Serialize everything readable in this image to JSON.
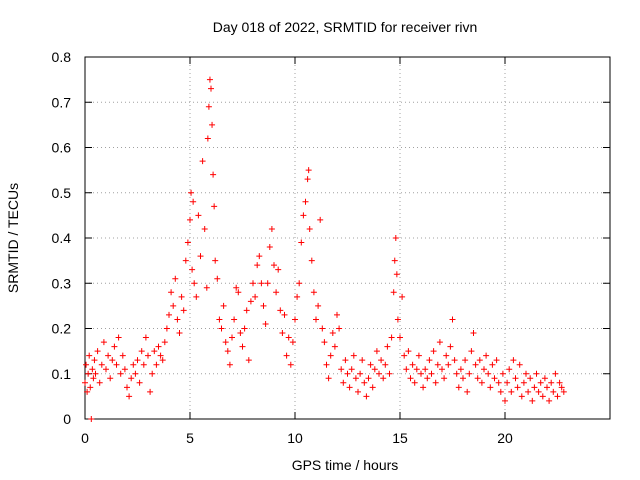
{
  "chart_data": {
    "type": "scatter",
    "title": "Day 018 of 2022, SRMTID for receiver rivn",
    "xlabel": "GPS time / hours",
    "ylabel": "SRMTID / TECUs",
    "xlim": [
      0,
      25
    ],
    "ylim": [
      0,
      0.8
    ],
    "xticks": [
      0,
      5,
      10,
      15,
      20
    ],
    "xtick_labels": [
      "0",
      "5",
      "10",
      "15",
      "20"
    ],
    "yticks": [
      0,
      0.1,
      0.2,
      0.3,
      0.4,
      0.5,
      0.6,
      0.7,
      0.8
    ],
    "ytick_labels": [
      "0",
      "0.1",
      "0.2",
      "0.3",
      "0.4",
      "0.5",
      "0.6",
      "0.7",
      "0.8"
    ],
    "grid": true,
    "marker": "+",
    "marker_color": "#ff0000",
    "series": [
      {
        "name": "rivn",
        "points": [
          [
            0.0,
            0.08
          ],
          [
            0.05,
            0.12
          ],
          [
            0.1,
            0.06
          ],
          [
            0.15,
            0.1
          ],
          [
            0.2,
            0.14
          ],
          [
            0.25,
            0.07
          ],
          [
            0.3,
            0.0
          ],
          [
            0.35,
            0.11
          ],
          [
            0.4,
            0.09
          ],
          [
            0.45,
            0.13
          ],
          [
            0.5,
            0.1
          ],
          [
            0.6,
            0.15
          ],
          [
            0.7,
            0.08
          ],
          [
            0.8,
            0.12
          ],
          [
            0.9,
            0.17
          ],
          [
            1.0,
            0.11
          ],
          [
            1.1,
            0.14
          ],
          [
            1.2,
            0.09
          ],
          [
            1.3,
            0.13
          ],
          [
            1.4,
            0.16
          ],
          [
            1.5,
            0.12
          ],
          [
            1.6,
            0.18
          ],
          [
            1.7,
            0.1
          ],
          [
            1.8,
            0.14
          ],
          [
            1.9,
            0.11
          ],
          [
            2.0,
            0.07
          ],
          [
            2.1,
            0.05
          ],
          [
            2.2,
            0.09
          ],
          [
            2.3,
            0.12
          ],
          [
            2.4,
            0.1
          ],
          [
            2.5,
            0.13
          ],
          [
            2.6,
            0.08
          ],
          [
            2.7,
            0.15
          ],
          [
            2.8,
            0.12
          ],
          [
            2.9,
            0.18
          ],
          [
            3.0,
            0.14
          ],
          [
            3.1,
            0.06
          ],
          [
            3.2,
            0.1
          ],
          [
            3.3,
            0.15
          ],
          [
            3.4,
            0.12
          ],
          [
            3.5,
            0.16
          ],
          [
            3.6,
            0.14
          ],
          [
            3.7,
            0.13
          ],
          [
            3.8,
            0.17
          ],
          [
            3.9,
            0.2
          ],
          [
            4.0,
            0.23
          ],
          [
            4.1,
            0.28
          ],
          [
            4.2,
            0.25
          ],
          [
            4.3,
            0.31
          ],
          [
            4.4,
            0.22
          ],
          [
            4.5,
            0.19
          ],
          [
            4.6,
            0.27
          ],
          [
            4.7,
            0.24
          ],
          [
            4.8,
            0.35
          ],
          [
            4.9,
            0.39
          ],
          [
            5.0,
            0.44
          ],
          [
            5.05,
            0.5
          ],
          [
            5.1,
            0.33
          ],
          [
            5.15,
            0.48
          ],
          [
            5.2,
            0.3
          ],
          [
            5.3,
            0.27
          ],
          [
            5.4,
            0.45
          ],
          [
            5.5,
            0.36
          ],
          [
            5.6,
            0.57
          ],
          [
            5.7,
            0.42
          ],
          [
            5.8,
            0.29
          ],
          [
            5.85,
            0.62
          ],
          [
            5.9,
            0.69
          ],
          [
            5.95,
            0.75
          ],
          [
            6.0,
            0.73
          ],
          [
            6.05,
            0.65
          ],
          [
            6.1,
            0.54
          ],
          [
            6.15,
            0.47
          ],
          [
            6.2,
            0.35
          ],
          [
            6.3,
            0.31
          ],
          [
            6.4,
            0.22
          ],
          [
            6.5,
            0.2
          ],
          [
            6.6,
            0.25
          ],
          [
            6.7,
            0.17
          ],
          [
            6.8,
            0.15
          ],
          [
            6.9,
            0.12
          ],
          [
            7.0,
            0.18
          ],
          [
            7.1,
            0.22
          ],
          [
            7.2,
            0.29
          ],
          [
            7.3,
            0.28
          ],
          [
            7.4,
            0.19
          ],
          [
            7.5,
            0.16
          ],
          [
            7.6,
            0.2
          ],
          [
            7.7,
            0.24
          ],
          [
            7.8,
            0.13
          ],
          [
            7.9,
            0.26
          ],
          [
            8.0,
            0.3
          ],
          [
            8.1,
            0.27
          ],
          [
            8.2,
            0.34
          ],
          [
            8.3,
            0.36
          ],
          [
            8.4,
            0.3
          ],
          [
            8.5,
            0.25
          ],
          [
            8.6,
            0.21
          ],
          [
            8.7,
            0.3
          ],
          [
            8.8,
            0.38
          ],
          [
            8.9,
            0.42
          ],
          [
            9.0,
            0.34
          ],
          [
            9.1,
            0.28
          ],
          [
            9.2,
            0.33
          ],
          [
            9.3,
            0.24
          ],
          [
            9.4,
            0.19
          ],
          [
            9.5,
            0.23
          ],
          [
            9.6,
            0.14
          ],
          [
            9.7,
            0.18
          ],
          [
            9.8,
            0.12
          ],
          [
            9.9,
            0.17
          ],
          [
            10.0,
            0.22
          ],
          [
            10.1,
            0.27
          ],
          [
            10.2,
            0.3
          ],
          [
            10.3,
            0.39
          ],
          [
            10.4,
            0.45
          ],
          [
            10.5,
            0.48
          ],
          [
            10.6,
            0.53
          ],
          [
            10.65,
            0.55
          ],
          [
            10.7,
            0.42
          ],
          [
            10.8,
            0.35
          ],
          [
            10.9,
            0.28
          ],
          [
            11.0,
            0.22
          ],
          [
            11.1,
            0.25
          ],
          [
            11.2,
            0.44
          ],
          [
            11.3,
            0.2
          ],
          [
            11.4,
            0.17
          ],
          [
            11.5,
            0.12
          ],
          [
            11.6,
            0.09
          ],
          [
            11.7,
            0.14
          ],
          [
            11.8,
            0.19
          ],
          [
            11.9,
            0.16
          ],
          [
            12.0,
            0.23
          ],
          [
            12.1,
            0.2
          ],
          [
            12.2,
            0.11
          ],
          [
            12.3,
            0.08
          ],
          [
            12.4,
            0.13
          ],
          [
            12.5,
            0.1
          ],
          [
            12.6,
            0.07
          ],
          [
            12.7,
            0.11
          ],
          [
            12.8,
            0.14
          ],
          [
            12.9,
            0.09
          ],
          [
            13.0,
            0.06
          ],
          [
            13.1,
            0.1
          ],
          [
            13.2,
            0.13
          ],
          [
            13.3,
            0.08
          ],
          [
            13.4,
            0.05
          ],
          [
            13.5,
            0.09
          ],
          [
            13.6,
            0.12
          ],
          [
            13.7,
            0.07
          ],
          [
            13.8,
            0.11
          ],
          [
            13.9,
            0.15
          ],
          [
            14.0,
            0.1
          ],
          [
            14.1,
            0.13
          ],
          [
            14.2,
            0.09
          ],
          [
            14.3,
            0.12
          ],
          [
            14.4,
            0.16
          ],
          [
            14.5,
            0.1
          ],
          [
            14.6,
            0.18
          ],
          [
            14.7,
            0.28
          ],
          [
            14.75,
            0.35
          ],
          [
            14.8,
            0.4
          ],
          [
            14.85,
            0.32
          ],
          [
            14.9,
            0.22
          ],
          [
            15.0,
            0.18
          ],
          [
            15.1,
            0.27
          ],
          [
            15.2,
            0.14
          ],
          [
            15.3,
            0.11
          ],
          [
            15.4,
            0.15
          ],
          [
            15.5,
            0.09
          ],
          [
            15.6,
            0.12
          ],
          [
            15.7,
            0.08
          ],
          [
            15.8,
            0.11
          ],
          [
            15.9,
            0.14
          ],
          [
            16.0,
            0.1
          ],
          [
            16.1,
            0.07
          ],
          [
            16.2,
            0.11
          ],
          [
            16.3,
            0.09
          ],
          [
            16.4,
            0.13
          ],
          [
            16.5,
            0.1
          ],
          [
            16.6,
            0.15
          ],
          [
            16.7,
            0.08
          ],
          [
            16.8,
            0.12
          ],
          [
            16.9,
            0.17
          ],
          [
            17.0,
            0.11
          ],
          [
            17.1,
            0.09
          ],
          [
            17.2,
            0.14
          ],
          [
            17.3,
            0.12
          ],
          [
            17.4,
            0.16
          ],
          [
            17.5,
            0.22
          ],
          [
            17.6,
            0.13
          ],
          [
            17.7,
            0.1
          ],
          [
            17.8,
            0.07
          ],
          [
            17.9,
            0.11
          ],
          [
            18.0,
            0.09
          ],
          [
            18.1,
            0.13
          ],
          [
            18.2,
            0.06
          ],
          [
            18.3,
            0.1
          ],
          [
            18.4,
            0.15
          ],
          [
            18.5,
            0.19
          ],
          [
            18.6,
            0.12
          ],
          [
            18.7,
            0.09
          ],
          [
            18.8,
            0.13
          ],
          [
            18.9,
            0.08
          ],
          [
            19.0,
            0.11
          ],
          [
            19.1,
            0.14
          ],
          [
            19.2,
            0.1
          ],
          [
            19.3,
            0.07
          ],
          [
            19.4,
            0.12
          ],
          [
            19.5,
            0.09
          ],
          [
            19.6,
            0.13
          ],
          [
            19.7,
            0.08
          ],
          [
            19.8,
            0.06
          ],
          [
            19.9,
            0.1
          ],
          [
            20.0,
            0.04
          ],
          [
            20.1,
            0.08
          ],
          [
            20.2,
            0.11
          ],
          [
            20.3,
            0.06
          ],
          [
            20.4,
            0.13
          ],
          [
            20.5,
            0.09
          ],
          [
            20.6,
            0.07
          ],
          [
            20.7,
            0.12
          ],
          [
            20.8,
            0.05
          ],
          [
            20.9,
            0.08
          ],
          [
            21.0,
            0.1
          ],
          [
            21.1,
            0.06
          ],
          [
            21.2,
            0.09
          ],
          [
            21.3,
            0.04
          ],
          [
            21.4,
            0.07
          ],
          [
            21.5,
            0.1
          ],
          [
            21.6,
            0.06
          ],
          [
            21.7,
            0.08
          ],
          [
            21.8,
            0.05
          ],
          [
            21.9,
            0.09
          ],
          [
            22.0,
            0.07
          ],
          [
            22.1,
            0.04
          ],
          [
            22.2,
            0.08
          ],
          [
            22.3,
            0.06
          ],
          [
            22.4,
            0.1
          ],
          [
            22.5,
            0.05
          ],
          [
            22.6,
            0.08
          ],
          [
            22.7,
            0.07
          ],
          [
            22.8,
            0.06
          ]
        ]
      }
    ]
  }
}
